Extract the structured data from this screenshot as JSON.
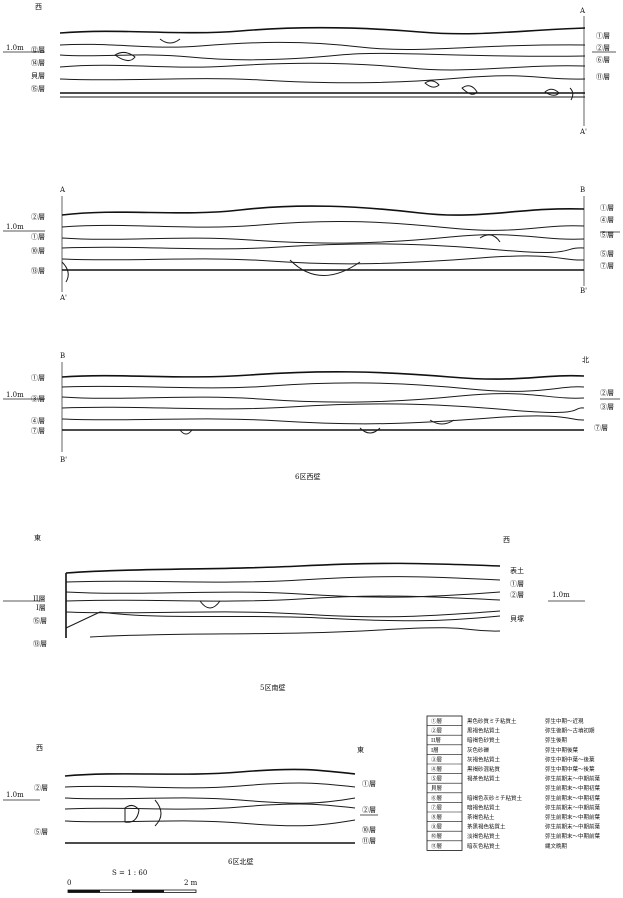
{
  "title": "",
  "sections": {
    "west_wall": {
      "caption": "6区西壁",
      "panel1": {
        "corner_left": "西",
        "section_top_right": "A",
        "section_bottom_right": "A'",
        "level": "1.0m",
        "left_layers": [
          "⑫層",
          "⑭層",
          "貝層",
          "⑮層"
        ],
        "right_layers": [
          "①層",
          "②層",
          "⑥層",
          "⑪層"
        ]
      },
      "panel2": {
        "section_top_left": "A",
        "section_bottom_left": "A'",
        "section_top_right": "B",
        "section_bottom_right": "B'",
        "level": "1.0m",
        "left_layers": [
          "②層",
          "①層",
          "⑩層",
          "⑬層"
        ],
        "right_layers": [
          "①層",
          "④層",
          "⑤層",
          "⑤層",
          "⑦層"
        ]
      },
      "panel3": {
        "corner_right": "北",
        "section_top_left": "B",
        "section_bottom_left": "B'",
        "level": "1.0m",
        "left_layers": [
          "①層",
          "③層",
          "④層",
          "⑦層"
        ],
        "right_layers": [
          "②層",
          "③層",
          "⑦層"
        ]
      }
    },
    "south_wall": {
      "caption": "5区南壁",
      "corner_left": "東",
      "corner_right": "西",
      "level": "1.0m",
      "left_layers": [
        "II層",
        "I層",
        "⑮層",
        "⑬層"
      ],
      "right_layers": [
        "表土",
        "①層",
        "②層",
        "貝塚"
      ]
    },
    "north_wall": {
      "caption": "6区北壁",
      "corner_left": "西",
      "corner_right": "東",
      "level": "1.0m",
      "left_layers": [
        "②層",
        "⑤層"
      ],
      "right_layers": [
        "①層",
        "②層",
        "⑩層",
        "⑪層"
      ]
    }
  },
  "legend": [
    {
      "layer": "①層",
      "soil": "黒色砂質ミチ粘質土",
      "period": "弥生中期～近現"
    },
    {
      "layer": "②層",
      "soil": "黒褐色粘質土",
      "period": "弥生後期～古墳初期"
    },
    {
      "layer": "II層",
      "soil": "暗褐色砂質土",
      "period": "弥生後期"
    },
    {
      "layer": "I層",
      "soil": "灰色砂礫",
      "period": "弥生中期後葉"
    },
    {
      "layer": "③層",
      "soil": "灰褐色粘質土",
      "period": "弥生中期中葉～後葉"
    },
    {
      "layer": "④層",
      "soil": "黒褐砂混粘質",
      "period": "弥生中期中葉～後葉"
    },
    {
      "layer": "⑤層",
      "soil": "褐茶色粘質土",
      "period": "弥生前期末～中期前葉"
    },
    {
      "layer": "貝層",
      "soil": "",
      "period": "弥生前期末～中期初葉"
    },
    {
      "layer": "⑥層",
      "soil": "暗褐色灰砂ミチ粘質土",
      "period": "弥生前期末～中期初葉"
    },
    {
      "layer": "⑦層",
      "soil": "暗褐色粘質土",
      "period": "弥生前期末～中期前葉"
    },
    {
      "layer": "⑧層",
      "soil": "茶褐色粘土",
      "period": "弥生前期末～中期前葉"
    },
    {
      "layer": "⑨層",
      "soil": "茶黒褐色粘質土",
      "period": "弥生前期末～中期前葉"
    },
    {
      "layer": "⑩層",
      "soil": "淡褐色粘質土",
      "period": "弥生前期末～中期前葉"
    },
    {
      "layer": "⑪層",
      "soil": "暗灰色粘質土",
      "period": "縄文晩期"
    }
  ],
  "scale": {
    "label": "S = 1 : 60",
    "start": "0",
    "end": "2 m"
  }
}
